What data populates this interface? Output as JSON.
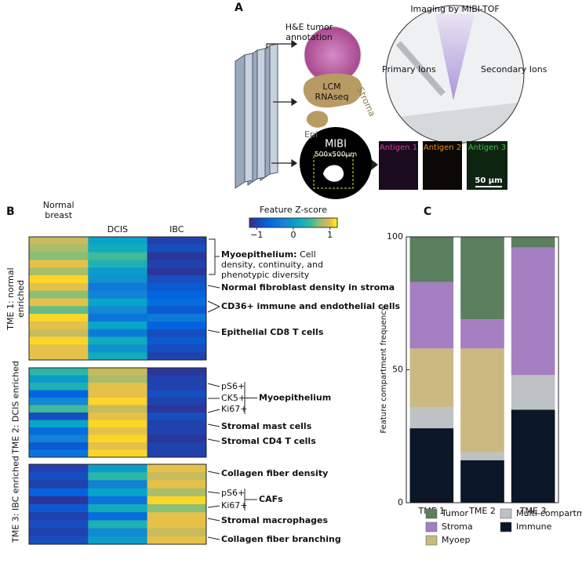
{
  "panel_a": {
    "label": "A",
    "he": "H&E tumor annotation",
    "lcm": "LCM RNAseq",
    "stroma": "Stroma",
    "epi": "Epi",
    "mibi": "MIBI",
    "mibi_size": "500x500µm",
    "imaging_title": "Imaging by MIBI-TOF",
    "primary": "Primary Ions",
    "secondary": "Secondary Ions",
    "antigens": [
      "Antigen 1",
      "Antigen 2",
      "Antigen 3"
    ],
    "scale_bar": "50 µm"
  },
  "chart_data": [
    {
      "type": "heatmap",
      "panel": "B",
      "columns": [
        "Normal breast",
        "DCIS",
        "IBC"
      ],
      "colorbar_title": "Feature Z-score",
      "zlim": [
        -1.2,
        1.2
      ],
      "zticks": [
        {
          "value": -1,
          "label": "−1"
        },
        0,
        1
      ],
      "colormap": "parula",
      "blocks": [
        {
          "label": "TME 1: normal enriched",
          "rows": [
            [
              0.9,
              0.1,
              -1.0
            ],
            [
              0.8,
              0.2,
              -0.9
            ],
            [
              0.7,
              0.5,
              -1.1
            ],
            [
              1.0,
              0.3,
              -1.0
            ],
            [
              0.8,
              0.0,
              -1.1
            ],
            [
              1.1,
              -0.1,
              -0.9
            ],
            [
              1.0,
              -0.4,
              -0.8
            ],
            [
              0.7,
              -0.3,
              -0.7
            ],
            [
              1.0,
              0.1,
              -0.6
            ],
            [
              0.6,
              -0.2,
              -0.8
            ],
            [
              1.1,
              -0.5,
              -0.4
            ],
            [
              1.0,
              0.1,
              -0.7
            ],
            [
              0.9,
              -0.4,
              -0.9
            ],
            [
              1.1,
              0.2,
              -0.8
            ],
            [
              1.0,
              -0.1,
              -0.9
            ],
            [
              1.0,
              0.2,
              -1.0
            ]
          ]
        },
        {
          "label": "TME 2: DCIS enriched",
          "rows": [
            [
              0.4,
              0.9,
              -1.1
            ],
            [
              0.0,
              0.8,
              -1.0
            ],
            [
              0.3,
              1.0,
              -1.0
            ],
            [
              -0.7,
              1.0,
              -0.9
            ],
            [
              -0.2,
              1.1,
              -1.0
            ],
            [
              0.5,
              0.9,
              -1.1
            ],
            [
              -0.9,
              1.0,
              -0.9
            ],
            [
              0.1,
              1.1,
              -1.0
            ],
            [
              -0.6,
              1.0,
              -1.0
            ],
            [
              -0.3,
              1.1,
              -1.1
            ],
            [
              -0.8,
              1.0,
              -1.0
            ],
            [
              -0.5,
              1.1,
              -1.0
            ]
          ]
        },
        {
          "label": "TME 3: IBC enriched",
          "rows": [
            [
              -1.0,
              0.0,
              1.0
            ],
            [
              -0.9,
              0.4,
              0.9
            ],
            [
              -1.0,
              -0.3,
              1.0
            ],
            [
              -0.7,
              0.1,
              0.8
            ],
            [
              -1.1,
              -0.5,
              1.1
            ],
            [
              -0.8,
              0.2,
              0.7
            ],
            [
              -1.0,
              -0.6,
              1.0
            ],
            [
              -0.9,
              0.3,
              1.0
            ],
            [
              -1.0,
              -0.2,
              0.9
            ],
            [
              -0.9,
              0.0,
              1.0
            ]
          ]
        }
      ],
      "annotations": [
        {
          "label": "Myoepithelium:",
          "text": "Cell density, continuity, and phenotypic diversity"
        },
        {
          "text": "Normal fibroblast density in stroma"
        },
        {
          "text": "CD36+ immune and endothelial cells"
        },
        {
          "text": "Epithelial CD8 T cells"
        },
        {
          "items": [
            "pS6+",
            "CK5+",
            "Ki67+"
          ],
          "text": "Myoepithelium"
        },
        {
          "text": "Stromal mast cells"
        },
        {
          "text": "Stromal CD4 T cells"
        },
        {
          "text": "Collagen fiber density"
        },
        {
          "items": [
            "pS6+",
            "Ki67+"
          ],
          "text": "CAFs"
        },
        {
          "text": "Stromal macrophages"
        },
        {
          "text": "Collagen fiber branching"
        }
      ]
    },
    {
      "type": "stacked_bar",
      "panel": "C",
      "categories": [
        "TME 1",
        "TME 2",
        "TME 3"
      ],
      "ylabel": "Feature compartment frequency",
      "ylim": [
        0,
        100
      ],
      "yticks": [
        0,
        50,
        100
      ],
      "series": [
        {
          "name": "Immune",
          "color": "#0b1626",
          "values": [
            28,
            16,
            35
          ]
        },
        {
          "name": "Multi-compartment",
          "color": "#bfc2c4",
          "values": [
            8,
            3,
            13
          ]
        },
        {
          "name": "Myoep",
          "color": "#cbb982",
          "values": [
            22,
            39,
            0
          ]
        },
        {
          "name": "Stroma",
          "color": "#a47fc2",
          "values": [
            25,
            11,
            48
          ]
        },
        {
          "name": "Tumor",
          "color": "#5b7f5f",
          "values": [
            17,
            31,
            4
          ]
        }
      ]
    }
  ]
}
